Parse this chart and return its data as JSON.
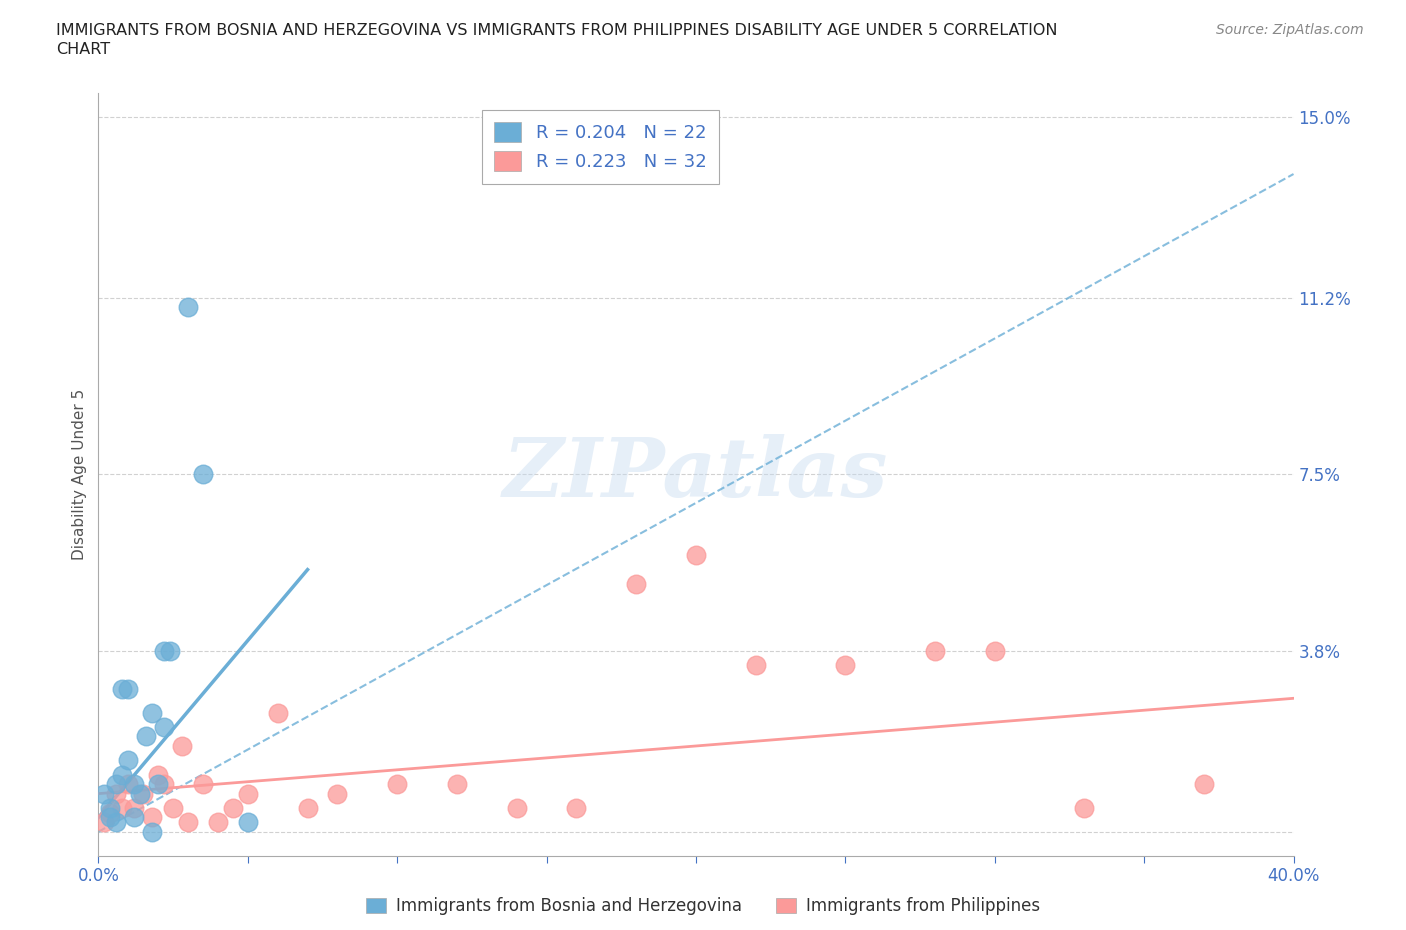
{
  "title_line1": "IMMIGRANTS FROM BOSNIA AND HERZEGOVINA VS IMMIGRANTS FROM PHILIPPINES DISABILITY AGE UNDER 5 CORRELATION",
  "title_line2": "CHART",
  "source": "Source: ZipAtlas.com",
  "xlabel_bosnia": "Immigrants from Bosnia and Herzegovina",
  "xlabel_philippines": "Immigrants from Philippines",
  "ylabel": "Disability Age Under 5",
  "xlim": [
    0.0,
    0.4
  ],
  "ylim": [
    -0.005,
    0.155
  ],
  "yticks": [
    0.0,
    0.038,
    0.075,
    0.112,
    0.15
  ],
  "ytick_labels": [
    "",
    "3.8%",
    "7.5%",
    "11.2%",
    "15.0%"
  ],
  "xticks": [
    0.0,
    0.05,
    0.1,
    0.15,
    0.2,
    0.25,
    0.3,
    0.35,
    0.4
  ],
  "xtick_labels": [
    "0.0%",
    "",
    "",
    "",
    "",
    "",
    "",
    "",
    "40.0%"
  ],
  "bosnia_color": "#6baed6",
  "philippines_color": "#fb9a99",
  "bosnia_R": 0.204,
  "bosnia_N": 22,
  "philippines_R": 0.223,
  "philippines_N": 32,
  "bosnia_x": [
    0.002,
    0.004,
    0.006,
    0.008,
    0.01,
    0.012,
    0.014,
    0.016,
    0.018,
    0.02,
    0.022,
    0.024,
    0.004,
    0.006,
    0.008,
    0.01,
    0.012,
    0.03,
    0.035,
    0.018,
    0.022,
    0.05
  ],
  "bosnia_y": [
    0.008,
    0.005,
    0.01,
    0.012,
    0.015,
    0.01,
    0.008,
    0.02,
    0.025,
    0.01,
    0.038,
    0.038,
    0.003,
    0.002,
    0.03,
    0.03,
    0.003,
    0.11,
    0.075,
    0.0,
    0.022,
    0.002
  ],
  "philippines_x": [
    0.002,
    0.004,
    0.006,
    0.008,
    0.01,
    0.012,
    0.015,
    0.018,
    0.02,
    0.022,
    0.025,
    0.028,
    0.03,
    0.035,
    0.04,
    0.045,
    0.05,
    0.06,
    0.07,
    0.08,
    0.1,
    0.12,
    0.14,
    0.16,
    0.18,
    0.2,
    0.22,
    0.25,
    0.28,
    0.3,
    0.33,
    0.37
  ],
  "philippines_y": [
    0.002,
    0.004,
    0.008,
    0.005,
    0.01,
    0.005,
    0.008,
    0.003,
    0.012,
    0.01,
    0.005,
    0.018,
    0.002,
    0.01,
    0.002,
    0.005,
    0.008,
    0.025,
    0.005,
    0.008,
    0.01,
    0.01,
    0.005,
    0.005,
    0.052,
    0.058,
    0.035,
    0.035,
    0.038,
    0.038,
    0.005,
    0.01
  ],
  "watermark": "ZIPatlas",
  "bg_color": "#ffffff",
  "grid_color": "#cccccc",
  "bosnia_trendline_x": [
    0.0,
    0.07
  ],
  "bosnia_trendline_y": [
    0.003,
    0.055
  ],
  "dashed_line_x": [
    0.0,
    0.4
  ],
  "dashed_line_y": [
    0.0,
    0.138
  ],
  "philippines_trendline_x": [
    0.0,
    0.4
  ],
  "philippines_trendline_y": [
    0.008,
    0.028
  ]
}
